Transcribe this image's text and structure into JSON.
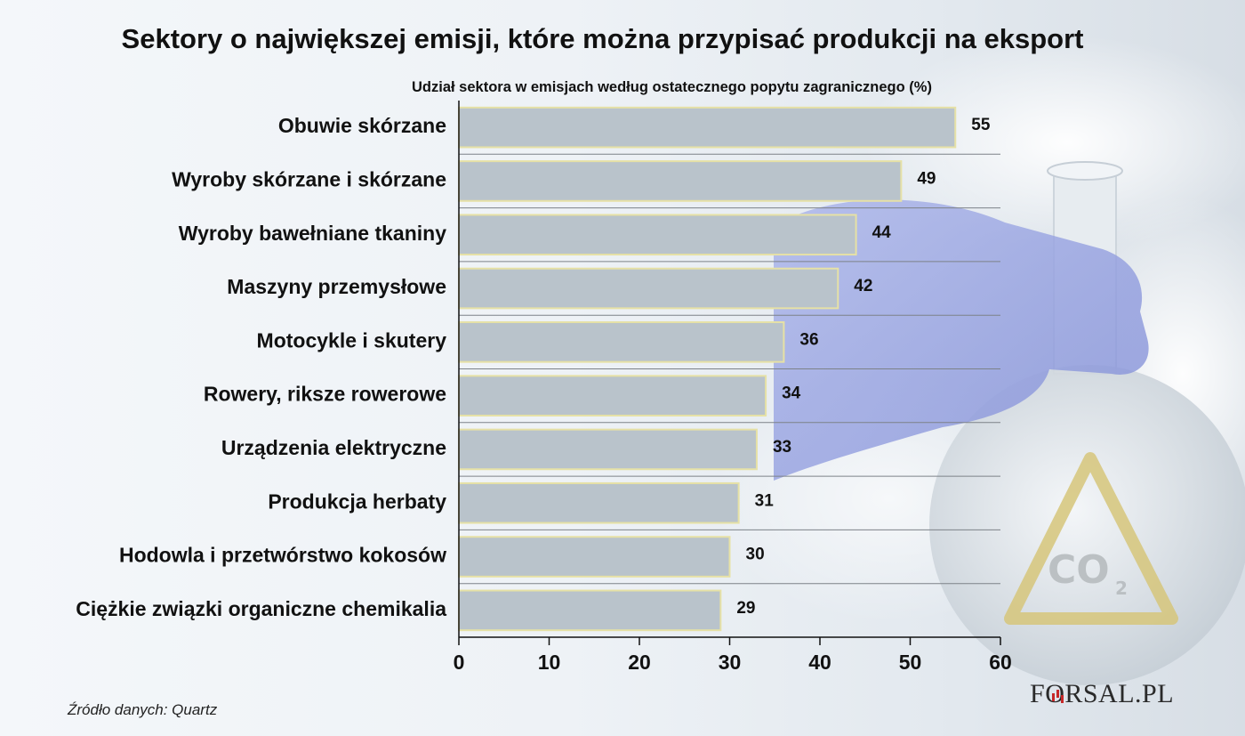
{
  "chart_data": {
    "type": "bar",
    "orientation": "horizontal",
    "title": "Sektory o największej emisji, które można przypisać produkcji na eksport",
    "subtitle": "Udział sektora w  emisjach według ostatecznego popytu zagranicznego (%)",
    "categories": [
      "Obuwie skórzane",
      "Wyroby skórzane i skórzane",
      "Wyroby bawełniane tkaniny",
      "Maszyny przemysłowe",
      "Motocykle i skutery",
      "Rowery, riksze rowerowe",
      "Urządzenia elektryczne",
      "Produkcja herbaty",
      "Hodowla i przetwórstwo kokosów",
      "Ciężkie związki organiczne chemikalia"
    ],
    "values": [
      55,
      49,
      44,
      42,
      36,
      34,
      33,
      31,
      30,
      29
    ],
    "xlim": [
      0,
      60
    ],
    "xticks": [
      "0",
      "10",
      "20",
      "30",
      "40",
      "50",
      "60"
    ],
    "grid": "horizontal separators between bars",
    "bar_color": "#b9c3cb",
    "bar_border_color": "#e6e1a6"
  },
  "source_text": "Źródło danych: Quartz",
  "logo": {
    "before": "F",
    "o": "O",
    "after": "RSAL.PL"
  }
}
